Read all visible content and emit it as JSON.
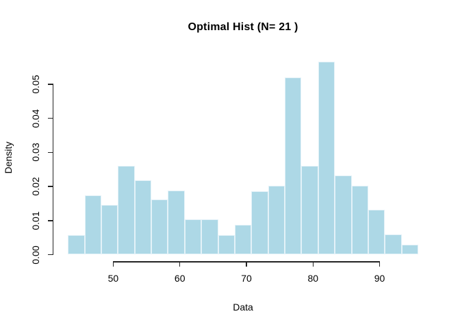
{
  "figure": {
    "title": "Optimal Hist (N= 21 )",
    "xlabel": "Data",
    "ylabel": "Density"
  },
  "chart_data": {
    "type": "bar",
    "subtype": "histogram",
    "title": "Optimal Hist (N= 21 )",
    "xlabel": "Data",
    "ylabel": "Density",
    "n_bins": 21,
    "bin_start": 43.2,
    "bin_end": 95.8,
    "bin_width": 2.5,
    "densities": [
      0.0058,
      0.0174,
      0.0145,
      0.0261,
      0.0219,
      0.0162,
      0.0188,
      0.0103,
      0.0103,
      0.0058,
      0.0087,
      0.0187,
      0.0202,
      0.0521,
      0.0261,
      0.0566,
      0.0232,
      0.0202,
      0.0131,
      0.0059,
      0.0029
    ],
    "x_ticks": [
      50,
      60,
      70,
      80,
      90
    ],
    "y_ticks": [
      0,
      0.01,
      0.02,
      0.03,
      0.04,
      0.05
    ],
    "y_tick_labels": [
      "0.00",
      "0.01",
      "0.02",
      "0.03",
      "0.04",
      "0.05"
    ],
    "xlim": [
      41.1,
      97.9
    ],
    "ylim": [
      0,
      0.0589
    ],
    "grid": false,
    "legend": null,
    "colors": {
      "bar_fill": "#ADD8E6",
      "bar_border": "#E4F2F8",
      "axis": "#222222",
      "text": "#000000",
      "background": "#FFFFFF"
    }
  }
}
